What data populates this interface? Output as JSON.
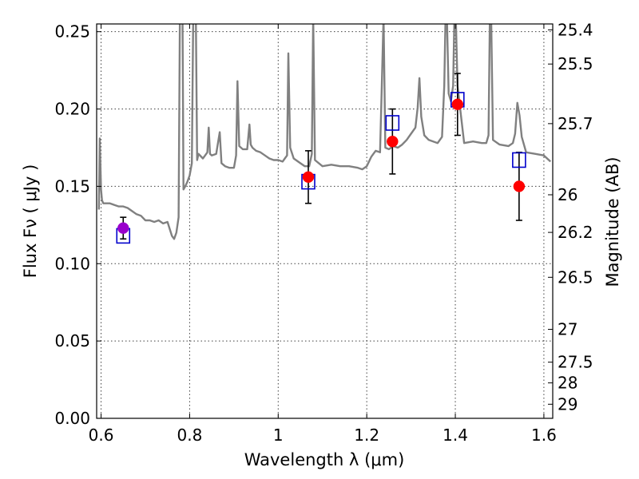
{
  "chart_data": {
    "type": "scatter",
    "xlabel": "Wavelength  λ (μm)",
    "ylabel": "Flux  Fν  ( μJy )",
    "y2label": "Magnitude (AB)",
    "xlim": [
      0.59,
      1.62
    ],
    "ylim": [
      0.0,
      0.255
    ],
    "grid": true,
    "x_ticks": [
      0.6,
      0.8,
      1.0,
      1.2,
      1.4,
      1.6
    ],
    "x_tick_labels": [
      "0.6",
      "0.8",
      "1",
      "1.2",
      "1.4",
      "1.6"
    ],
    "y_ticks": [
      0.0,
      0.05,
      0.1,
      0.15,
      0.2,
      0.25
    ],
    "y_tick_labels": [
      "0.00",
      "0.05",
      "0.10",
      "0.15",
      "0.20",
      "0.25"
    ],
    "y2_tick_labels": [
      "25.4",
      "25.5",
      "25.7",
      "26",
      "26.2",
      "26.5",
      "27",
      "27.5",
      "28",
      "29"
    ],
    "colors": {
      "model": "#808080",
      "observed": "#ff0000",
      "first_observed": "#9900cc",
      "model_photometry": "#0000cc",
      "errorbar": "#000000"
    },
    "model_spectrum": {
      "x": [
        0.595,
        0.597,
        0.6,
        0.602,
        0.605,
        0.61,
        0.62,
        0.63,
        0.64,
        0.65,
        0.66,
        0.67,
        0.68,
        0.69,
        0.7,
        0.71,
        0.72,
        0.73,
        0.74,
        0.75,
        0.76,
        0.765,
        0.77,
        0.775,
        0.778,
        0.781,
        0.784,
        0.786,
        0.79,
        0.795,
        0.8,
        0.805,
        0.808,
        0.811,
        0.814,
        0.817,
        0.82,
        0.83,
        0.84,
        0.843,
        0.846,
        0.85,
        0.86,
        0.865,
        0.868,
        0.872,
        0.88,
        0.89,
        0.9,
        0.905,
        0.908,
        0.912,
        0.92,
        0.93,
        0.935,
        0.938,
        0.942,
        0.95,
        0.96,
        0.97,
        0.98,
        0.99,
        1.0,
        1.01,
        1.015,
        1.02,
        1.023,
        1.027,
        1.035,
        1.05,
        1.06,
        1.07,
        1.076,
        1.079,
        1.083,
        1.1,
        1.12,
        1.14,
        1.16,
        1.18,
        1.19,
        1.2,
        1.21,
        1.215,
        1.22,
        1.23,
        1.234,
        1.238,
        1.242,
        1.25,
        1.26,
        1.27,
        1.28,
        1.29,
        1.3,
        1.31,
        1.315,
        1.319,
        1.323,
        1.33,
        1.34,
        1.36,
        1.37,
        1.375,
        1.378,
        1.381,
        1.385,
        1.39,
        1.395,
        1.398,
        1.401,
        1.405,
        1.42,
        1.44,
        1.46,
        1.47,
        1.475,
        1.478,
        1.481,
        1.485,
        1.5,
        1.52,
        1.53,
        1.535,
        1.54,
        1.545,
        1.55,
        1.56,
        1.58,
        1.6,
        1.615
      ],
      "y": [
        0.135,
        0.181,
        0.148,
        0.141,
        0.139,
        0.139,
        0.139,
        0.138,
        0.137,
        0.137,
        0.136,
        0.134,
        0.132,
        0.131,
        0.128,
        0.128,
        0.127,
        0.128,
        0.126,
        0.127,
        0.118,
        0.116,
        0.12,
        0.13,
        0.26,
        0.26,
        0.26,
        0.148,
        0.15,
        0.153,
        0.157,
        0.165,
        0.26,
        0.26,
        0.26,
        0.167,
        0.171,
        0.168,
        0.172,
        0.188,
        0.171,
        0.17,
        0.171,
        0.18,
        0.185,
        0.165,
        0.163,
        0.162,
        0.162,
        0.17,
        0.218,
        0.176,
        0.174,
        0.174,
        0.19,
        0.177,
        0.175,
        0.173,
        0.172,
        0.17,
        0.168,
        0.167,
        0.167,
        0.166,
        0.168,
        0.17,
        0.236,
        0.175,
        0.168,
        0.165,
        0.163,
        0.163,
        0.171,
        0.26,
        0.167,
        0.163,
        0.164,
        0.163,
        0.163,
        0.162,
        0.161,
        0.163,
        0.169,
        0.171,
        0.173,
        0.172,
        0.215,
        0.26,
        0.175,
        0.174,
        0.176,
        0.175,
        0.177,
        0.18,
        0.184,
        0.188,
        0.201,
        0.22,
        0.195,
        0.183,
        0.18,
        0.178,
        0.182,
        0.215,
        0.26,
        0.26,
        0.21,
        0.205,
        0.215,
        0.26,
        0.26,
        0.215,
        0.178,
        0.179,
        0.178,
        0.178,
        0.183,
        0.26,
        0.26,
        0.18,
        0.177,
        0.176,
        0.178,
        0.184,
        0.204,
        0.196,
        0.182,
        0.172,
        0.171,
        0.17,
        0.166
      ]
    },
    "observed": {
      "x": [
        0.65,
        1.068,
        1.258,
        1.405,
        1.544
      ],
      "y": [
        0.123,
        0.156,
        0.179,
        0.203,
        0.15
      ],
      "yerr": [
        0.007,
        0.017,
        0.021,
        0.02,
        0.022
      ]
    },
    "model_photometry": {
      "x": [
        0.65,
        1.068,
        1.258,
        1.405,
        1.544
      ],
      "y": [
        0.118,
        0.153,
        0.191,
        0.206,
        0.167
      ]
    }
  }
}
